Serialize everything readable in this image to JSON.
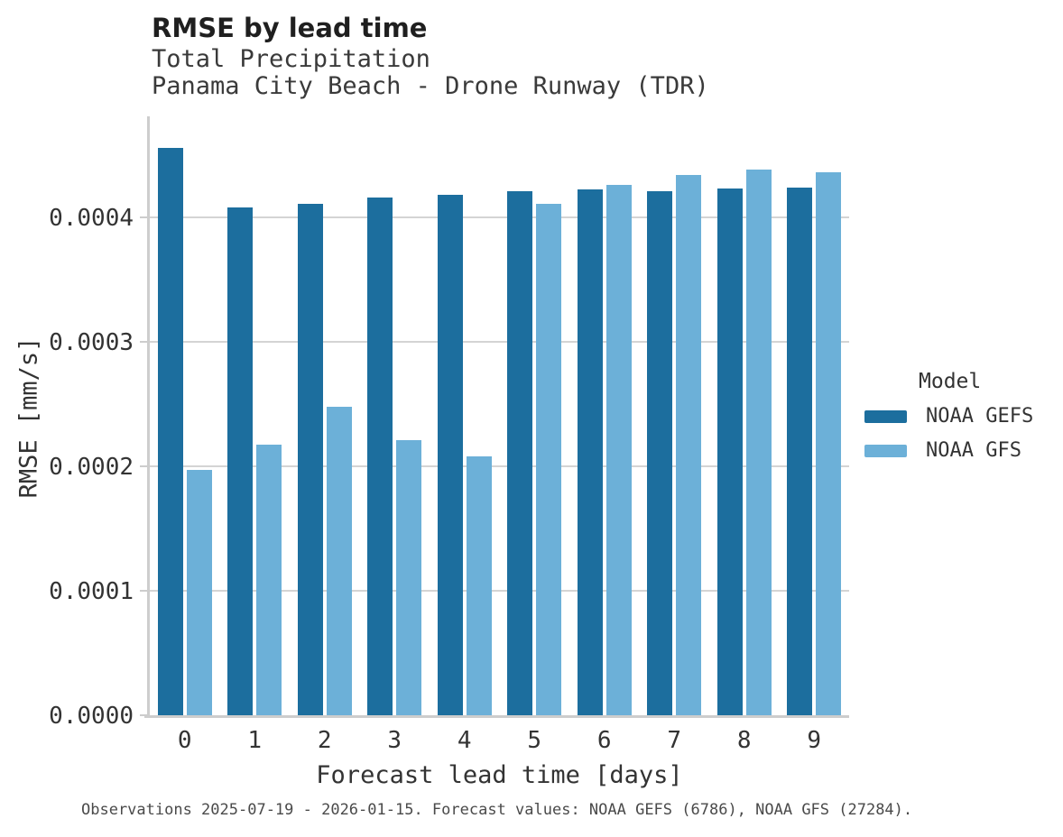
{
  "header": {
    "title": "RMSE by lead time",
    "subtitle_line1": "Total Precipitation",
    "subtitle_line2": "Panama City Beach - Drone Runway (TDR)"
  },
  "chart_data": {
    "type": "bar",
    "title": "RMSE by lead time",
    "subtitle": [
      "Total Precipitation",
      "Panama City Beach - Drone Runway (TDR)"
    ],
    "xlabel": "Forecast lead time [days]",
    "ylabel": "RMSE [mm/s]",
    "categories": [
      "0",
      "1",
      "2",
      "3",
      "4",
      "5",
      "6",
      "7",
      "8",
      "9"
    ],
    "series": [
      {
        "name": "NOAA GEFS",
        "color": "#1c6e9e",
        "values": [
          0.000456,
          0.000408,
          0.000411,
          0.000416,
          0.000418,
          0.000421,
          0.000422,
          0.000421,
          0.000423,
          0.000424
        ]
      },
      {
        "name": "NOAA GFS",
        "color": "#6cb0d8",
        "values": [
          0.000197,
          0.000217,
          0.000248,
          0.000221,
          0.000208,
          0.000411,
          0.000426,
          0.000434,
          0.000438,
          0.000436
        ]
      }
    ],
    "ylim": [
      0,
      0.000481
    ],
    "yticks": [
      {
        "label": "0.0000",
        "value": 0.0
      },
      {
        "label": "0.0001",
        "value": 0.0001
      },
      {
        "label": "0.0002",
        "value": 0.0002
      },
      {
        "label": "0.0003",
        "value": 0.0003
      },
      {
        "label": "0.0004",
        "value": 0.0004
      }
    ],
    "grid": "horizontal",
    "legend": {
      "title": "Model",
      "position": "right"
    }
  },
  "caption": "Observations 2025-07-19 - 2026-01-15. Forecast values: NOAA GEFS (6786), NOAA GFS (27284)."
}
